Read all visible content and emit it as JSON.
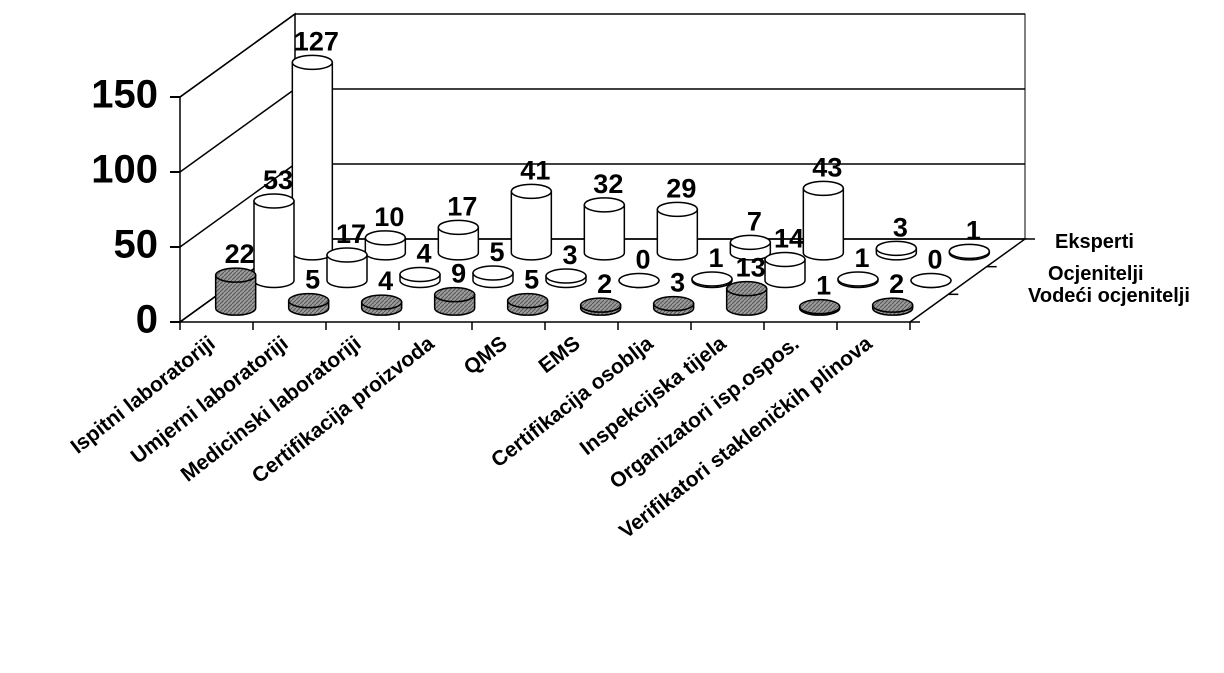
{
  "chart_data": {
    "type": "bar3d",
    "categories": [
      "Ispitni laboratoriji",
      "Umjerni laboratoriji",
      "Medicinski laboratoriji",
      "Certifikacija proizvoda",
      "QMS",
      "EMS",
      "Certifikacija osoblja",
      "Inspekcijska tijela",
      "Organizatori isp.ospos.",
      "Verifikatori stakleničkih plinova"
    ],
    "series": [
      {
        "name": "Vodeći ocjenitelji",
        "color": "#9a9a9a",
        "values": [
          22,
          5,
          4,
          9,
          5,
          2,
          3,
          13,
          1,
          2
        ]
      },
      {
        "name": "Ocjenitelji",
        "color": "#ffffff",
        "values": [
          53,
          17,
          4,
          5,
          3,
          0,
          1,
          14,
          1,
          0
        ]
      },
      {
        "name": "Eksperti",
        "color": "#ffffff",
        "values": [
          127,
          10,
          17,
          41,
          32,
          29,
          7,
          43,
          3,
          1
        ]
      }
    ],
    "ylim": [
      0,
      150
    ],
    "yticks": [
      0,
      50,
      100,
      150
    ],
    "grid": true
  }
}
